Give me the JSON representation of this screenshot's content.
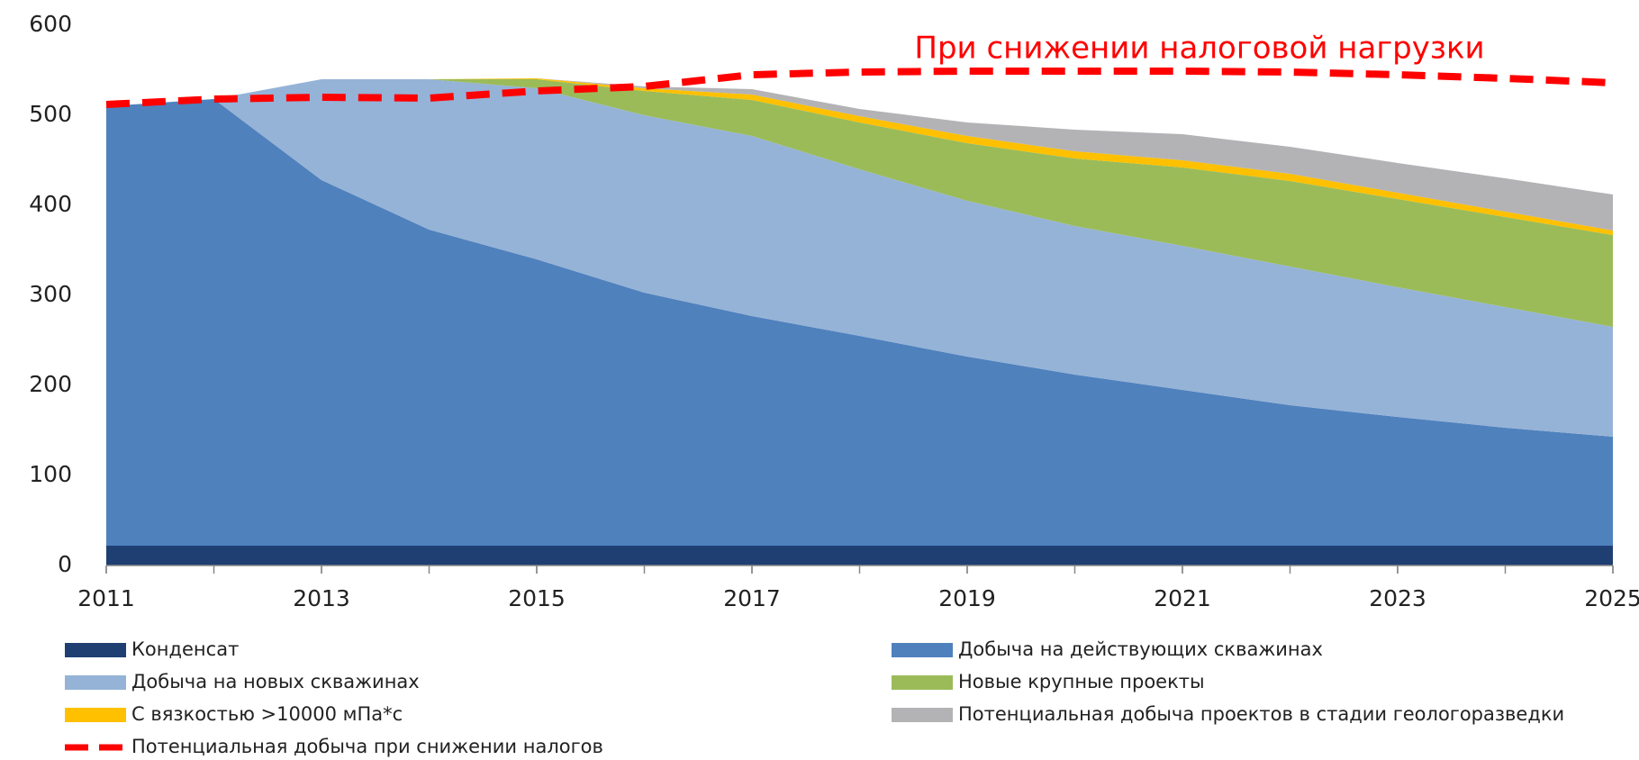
{
  "chart_data": {
    "type": "area",
    "stacked": true,
    "annotation": "При снижении налоговой нагрузки",
    "x": [
      2011,
      2012,
      2013,
      2014,
      2015,
      2016,
      2017,
      2018,
      2019,
      2020,
      2021,
      2022,
      2023,
      2024,
      2025
    ],
    "xlim": [
      2011,
      2025
    ],
    "xticks": [
      2011,
      2013,
      2015,
      2017,
      2019,
      2021,
      2023,
      2025
    ],
    "ylim": [
      0,
      600
    ],
    "yticks": [
      0,
      100,
      200,
      300,
      400,
      500,
      600
    ],
    "grid": false,
    "series": [
      {
        "name": "Конденсат",
        "color": "#1f3f73",
        "values": [
          22,
          22,
          22,
          22,
          22,
          22,
          22,
          22,
          22,
          22,
          22,
          22,
          22,
          22,
          22
        ]
      },
      {
        "name": "Добыча на действующих скважинах",
        "color": "#4f81bd",
        "values": [
          488,
          496,
          406,
          351,
          318,
          281,
          255,
          233,
          210,
          190,
          173,
          156,
          143,
          131,
          121
        ]
      },
      {
        "name": "Добыча на новых скважинах",
        "color": "#95b3d7",
        "values": [
          0,
          0,
          112,
          167,
          190,
          197,
          200,
          185,
          173,
          165,
          160,
          154,
          144,
          134,
          122
        ]
      },
      {
        "name": "Новые крупные проекты",
        "color": "#9bbb59",
        "values": [
          0,
          0,
          0,
          0,
          10,
          27,
          40,
          52,
          64,
          75,
          87,
          95,
          98,
          100,
          102
        ]
      },
      {
        "name": "С вязкостью >10000 мПа*с",
        "color": "#ffc000",
        "values": [
          0,
          0,
          0,
          0,
          1,
          3,
          6,
          7,
          8,
          8,
          8,
          8,
          7,
          6,
          5
        ]
      },
      {
        "name": "Потенциальная добыча проектов в стадии геологоразведки",
        "color": "#b3b3b6",
        "values": [
          0,
          0,
          0,
          0,
          0,
          2,
          6,
          8,
          15,
          24,
          29,
          30,
          33,
          37,
          40
        ]
      },
      {
        "name": "Потенциальная добыча при снижении налогов",
        "color": "#ff0000",
        "type": "line",
        "dashed": true,
        "values": [
          512,
          518,
          520,
          519,
          527,
          532,
          545,
          548,
          549,
          549,
          549,
          548,
          545,
          541,
          536
        ]
      }
    ]
  }
}
